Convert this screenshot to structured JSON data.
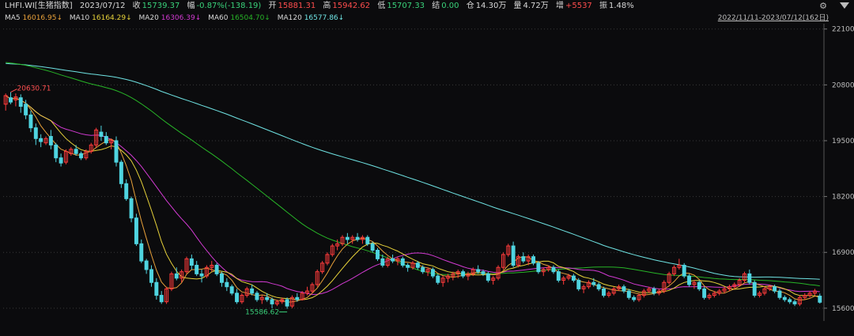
{
  "header": {
    "symbol": "LHFI.WI[生猪指数]",
    "date": "2023/07/12",
    "close_label": "收",
    "close": "15739.37",
    "change_label": "幅",
    "change": "-0.87%(-138.19)",
    "open_label": "开",
    "open": "15881.31",
    "high_label": "高",
    "high": "15942.62",
    "low_label": "低",
    "low": "15707.33",
    "settle_label": "结",
    "settle": "0.00",
    "oi_label": "仓",
    "oi": "14.30万",
    "volume_label": "量",
    "volume": "4.72万",
    "oi_change_label": "增",
    "oi_change": "+5537",
    "amplitude_label": "振",
    "amplitude": "1.48%"
  },
  "ma_legend": [
    {
      "label": "MA5",
      "value": "16016.95↓",
      "color": "#e8a13a"
    },
    {
      "label": "MA10",
      "value": "16164.29↓",
      "color": "#e7d23a"
    },
    {
      "label": "MA20",
      "value": "16306.39↓",
      "color": "#d23ad2"
    },
    {
      "label": "MA60",
      "value": "16504.70↓",
      "color": "#27b427"
    },
    {
      "label": "MA120",
      "value": "16577.86↓",
      "color": "#6fe3e3"
    }
  ],
  "date_range": "2022/11/11-2023/07/12(162日)",
  "colors": {
    "up": "#ff3b3b",
    "down": "#4fd4e0",
    "background": "#0b0b0d",
    "grid": "#3a3a3a"
  },
  "chart_data": {
    "type": "candlestick",
    "ylim": [
      15450,
      22150
    ],
    "yticks": [
      15600,
      16900,
      18200,
      19500,
      20800,
      22100
    ],
    "annotations": [
      {
        "text": "20630.71",
        "type": "max_high",
        "color": "#ff5050"
      },
      {
        "text": "15586.62",
        "type": "min_low",
        "color": "#39d17a"
      }
    ],
    "ohlc": [
      [
        20350,
        20600,
        20200,
        20550
      ],
      [
        20500,
        20630.71,
        20350,
        20400
      ],
      [
        20450,
        20600,
        20300,
        20520
      ],
      [
        20500,
        20580,
        20150,
        20300
      ],
      [
        20350,
        20450,
        20000,
        20100
      ],
      [
        20100,
        20200,
        19700,
        19800
      ],
      [
        19800,
        19900,
        19400,
        19550
      ],
      [
        19550,
        19650,
        19350,
        19480
      ],
      [
        19450,
        19600,
        19400,
        19550
      ],
      [
        19600,
        19750,
        19300,
        19400
      ],
      [
        19400,
        19450,
        19000,
        19100
      ],
      [
        19100,
        19200,
        18900,
        18980
      ],
      [
        19000,
        19300,
        18950,
        19250
      ],
      [
        19200,
        19350,
        19150,
        19300
      ],
      [
        19300,
        19400,
        19150,
        19200
      ],
      [
        19200,
        19250,
        19050,
        19100
      ],
      [
        19100,
        19300,
        19050,
        19250
      ],
      [
        19250,
        19450,
        19200,
        19400
      ],
      [
        19400,
        19800,
        19350,
        19750
      ],
      [
        19700,
        19850,
        19500,
        19600
      ],
      [
        19600,
        19700,
        19400,
        19450
      ],
      [
        19450,
        19550,
        19300,
        19500
      ],
      [
        19500,
        19600,
        18900,
        19000
      ],
      [
        19000,
        19050,
        18400,
        18500
      ],
      [
        18500,
        18600,
        18100,
        18150
      ],
      [
        18150,
        18200,
        17600,
        17700
      ],
      [
        17700,
        17800,
        17050,
        17100
      ],
      [
        17100,
        17200,
        16650,
        16700
      ],
      [
        16700,
        16750,
        16400,
        16500
      ],
      [
        16500,
        16600,
        16100,
        16200
      ],
      [
        16200,
        16300,
        15800,
        15900
      ],
      [
        15900,
        16000,
        15700,
        15750
      ],
      [
        15750,
        16100,
        15700,
        16050
      ],
      [
        16050,
        16450,
        16000,
        16400
      ],
      [
        16400,
        16550,
        16250,
        16300
      ],
      [
        16300,
        16500,
        16200,
        16450
      ],
      [
        16450,
        16800,
        16400,
        16750
      ],
      [
        16750,
        16850,
        16500,
        16600
      ],
      [
        16600,
        16700,
        16350,
        16400
      ],
      [
        16400,
        16500,
        16200,
        16350
      ],
      [
        16350,
        16600,
        16300,
        16550
      ],
      [
        16550,
        16700,
        16450,
        16600
      ],
      [
        16600,
        16650,
        16350,
        16400
      ],
      [
        16400,
        16450,
        16100,
        16200
      ],
      [
        16200,
        16300,
        16000,
        16100
      ],
      [
        16100,
        16150,
        15900,
        15950
      ],
      [
        15950,
        16050,
        15700,
        15750
      ],
      [
        15750,
        15950,
        15700,
        15900
      ],
      [
        15900,
        16100,
        15850,
        16050
      ],
      [
        16050,
        16150,
        15900,
        15950
      ],
      [
        15950,
        16000,
        15750,
        15800
      ],
      [
        15800,
        15900,
        15700,
        15850
      ],
      [
        15850,
        15950,
        15750,
        15800
      ],
      [
        15800,
        15850,
        15600,
        15700
      ],
      [
        15700,
        15800,
        15650,
        15750
      ],
      [
        15750,
        15850,
        15700,
        15800
      ],
      [
        15800,
        15850,
        15586.62,
        15650
      ],
      [
        15650,
        15900,
        15600,
        15850
      ],
      [
        15850,
        15950,
        15750,
        15800
      ],
      [
        15800,
        16000,
        15780,
        15950
      ],
      [
        15950,
        16100,
        15900,
        16000
      ],
      [
        16000,
        16200,
        15950,
        16150
      ],
      [
        16150,
        16500,
        16100,
        16450
      ],
      [
        16450,
        16700,
        16400,
        16650
      ],
      [
        16650,
        16900,
        16600,
        16850
      ],
      [
        16850,
        17100,
        16800,
        17050
      ],
      [
        17050,
        17200,
        16950,
        17100
      ],
      [
        17100,
        17300,
        17050,
        17250
      ],
      [
        17250,
        17350,
        17100,
        17200
      ],
      [
        17200,
        17300,
        17100,
        17250
      ],
      [
        17250,
        17350,
        17150,
        17200
      ],
      [
        17200,
        17300,
        17100,
        17250
      ],
      [
        17250,
        17300,
        17050,
        17100
      ],
      [
        17100,
        17150,
        16900,
        16950
      ],
      [
        16950,
        17000,
        16700,
        16750
      ],
      [
        16750,
        16850,
        16550,
        16600
      ],
      [
        16600,
        16800,
        16550,
        16750
      ],
      [
        16750,
        16850,
        16650,
        16700
      ],
      [
        16700,
        16800,
        16600,
        16750
      ],
      [
        16750,
        16800,
        16550,
        16600
      ],
      [
        16600,
        16650,
        16450,
        16550
      ],
      [
        16550,
        16700,
        16500,
        16650
      ],
      [
        16650,
        16700,
        16500,
        16550
      ],
      [
        16550,
        16600,
        16400,
        16450
      ],
      [
        16450,
        16550,
        16350,
        16500
      ],
      [
        16500,
        16550,
        16300,
        16350
      ],
      [
        16350,
        16400,
        16150,
        16200
      ],
      [
        16200,
        16350,
        16100,
        16300
      ],
      [
        16300,
        16400,
        16200,
        16350
      ],
      [
        16350,
        16450,
        16250,
        16400
      ],
      [
        16400,
        16500,
        16300,
        16450
      ],
      [
        16450,
        16500,
        16300,
        16350
      ],
      [
        16350,
        16450,
        16250,
        16400
      ],
      [
        16400,
        16550,
        16350,
        16500
      ],
      [
        16500,
        16600,
        16400,
        16450
      ],
      [
        16450,
        16500,
        16350,
        16400
      ],
      [
        16400,
        16450,
        16200,
        16250
      ],
      [
        16250,
        16350,
        16150,
        16300
      ],
      [
        16300,
        16600,
        16250,
        16550
      ],
      [
        16550,
        16900,
        16500,
        16850
      ],
      [
        16850,
        17100,
        16800,
        17050
      ],
      [
        17050,
        17150,
        16550,
        16600
      ],
      [
        16600,
        16850,
        16550,
        16800
      ],
      [
        16800,
        16900,
        16650,
        16700
      ],
      [
        16700,
        16850,
        16600,
        16800
      ],
      [
        16800,
        16850,
        16600,
        16650
      ],
      [
        16650,
        16700,
        16400,
        16450
      ],
      [
        16450,
        16550,
        16350,
        16500
      ],
      [
        16500,
        16600,
        16450,
        16550
      ],
      [
        16550,
        16600,
        16400,
        16450
      ],
      [
        16450,
        16500,
        16200,
        16250
      ],
      [
        16250,
        16350,
        16150,
        16300
      ],
      [
        16300,
        16400,
        16250,
        16350
      ],
      [
        16350,
        16400,
        16200,
        16250
      ],
      [
        16250,
        16300,
        16000,
        16050
      ],
      [
        16050,
        16150,
        15950,
        16100
      ],
      [
        16100,
        16250,
        16050,
        16200
      ],
      [
        16200,
        16300,
        16100,
        16150
      ],
      [
        16150,
        16200,
        16000,
        16050
      ],
      [
        16050,
        16100,
        15850,
        15900
      ],
      [
        15900,
        16000,
        15850,
        15950
      ],
      [
        15950,
        16100,
        15900,
        16050
      ],
      [
        16050,
        16150,
        16000,
        16100
      ],
      [
        16100,
        16150,
        15950,
        16000
      ],
      [
        16000,
        16050,
        15800,
        15850
      ],
      [
        15850,
        15900,
        15750,
        15800
      ],
      [
        15800,
        15950,
        15750,
        15900
      ],
      [
        15900,
        16050,
        15850,
        16000
      ],
      [
        16000,
        16100,
        15950,
        16050
      ],
      [
        16050,
        16100,
        15900,
        15950
      ],
      [
        15950,
        16050,
        15900,
        16000
      ],
      [
        16000,
        16250,
        15950,
        16200
      ],
      [
        16200,
        16450,
        16150,
        16400
      ],
      [
        16400,
        16600,
        16350,
        16550
      ],
      [
        16550,
        16750,
        16500,
        16600
      ],
      [
        16600,
        16650,
        16300,
        16350
      ],
      [
        16350,
        16400,
        16100,
        16150
      ],
      [
        16150,
        16250,
        16050,
        16200
      ],
      [
        16200,
        16250,
        16000,
        16050
      ],
      [
        16050,
        16100,
        15800,
        15850
      ],
      [
        15850,
        15950,
        15800,
        15900
      ],
      [
        15900,
        16000,
        15850,
        15950
      ],
      [
        15950,
        16050,
        15900,
        16000
      ],
      [
        16000,
        16100,
        15950,
        16050
      ],
      [
        16050,
        16150,
        16000,
        16100
      ],
      [
        16100,
        16200,
        16050,
        16150
      ],
      [
        16150,
        16300,
        16100,
        16250
      ],
      [
        16250,
        16450,
        16200,
        16400
      ],
      [
        16400,
        16500,
        16150,
        16200
      ],
      [
        16200,
        16250,
        15850,
        15900
      ],
      [
        15900,
        16000,
        15850,
        15950
      ],
      [
        15950,
        16100,
        15900,
        16050
      ],
      [
        16050,
        16150,
        16000,
        16100
      ],
      [
        16100,
        16150,
        15950,
        16000
      ],
      [
        16000,
        16050,
        15800,
        15850
      ],
      [
        15850,
        15900,
        15750,
        15800
      ],
      [
        15800,
        15850,
        15700,
        15750
      ],
      [
        15750,
        15800,
        15650,
        15700
      ],
      [
        15700,
        15900,
        15650,
        15850
      ],
      [
        15850,
        15950,
        15800,
        15900
      ],
      [
        15900,
        16000,
        15850,
        15950
      ],
      [
        15950,
        16050,
        15900,
        16000
      ],
      [
        15881.31,
        15942.62,
        15707.33,
        15739.37
      ]
    ],
    "ma120_start": [
      21250,
      21300,
      21320,
      21330,
      21335,
      21330,
      21320,
      21300,
      21260
    ],
    "ma60_start": [
      21500,
      21480,
      21440,
      21380,
      21300,
      21200,
      21050
    ]
  }
}
